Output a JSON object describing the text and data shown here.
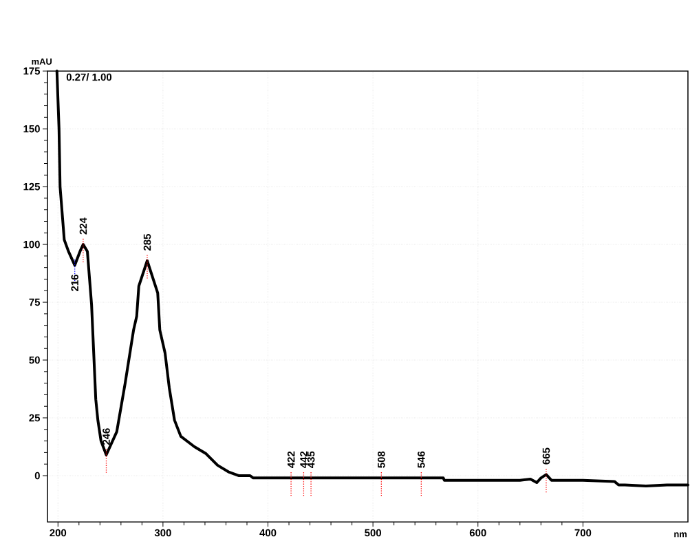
{
  "chart_data": {
    "type": "line",
    "xlabel": "nm",
    "ylabel": "mAU",
    "x": [
      199,
      201,
      202,
      206,
      210,
      216,
      221,
      224,
      228,
      232,
      236,
      238,
      241,
      246,
      256,
      264,
      272,
      275,
      277,
      285,
      295,
      297,
      302,
      306,
      311,
      317,
      330,
      341,
      352,
      363,
      372,
      383,
      386,
      450,
      500,
      540,
      567,
      568,
      600,
      640,
      650,
      656,
      660,
      665,
      670,
      680,
      700,
      730,
      734,
      740,
      760,
      780,
      800
    ],
    "series": [
      {
        "color": "#000000",
        "values": [
          175,
          150,
          125,
          102,
          97,
          91,
          97,
          100,
          97,
          74,
          33,
          24,
          15,
          9,
          19,
          40,
          63,
          69,
          82,
          93,
          79,
          63,
          53,
          38,
          24,
          17,
          12.5,
          9.5,
          4.5,
          1.5,
          0,
          0,
          -1,
          -1,
          -1,
          -1,
          -1,
          -2,
          -2,
          -2,
          -1.5,
          -3,
          -1,
          0.5,
          -2,
          -2,
          -2,
          -2.5,
          -4,
          -4,
          -4.5,
          -4,
          -4
        ]
      }
    ],
    "xlim": [
      190,
      800
    ],
    "ylim": [
      -20,
      175
    ],
    "xticks": [
      200,
      300,
      400,
      500,
      600,
      700
    ],
    "yticks": [
      0,
      25,
      50,
      75,
      100,
      125,
      150,
      175
    ],
    "grid": true,
    "line_style": "solid",
    "marker": "none",
    "annotations": [
      "0.27/ 1.00",
      {
        "text": "216",
        "x": 216,
        "y": 91
      },
      {
        "text": "224",
        "x": 224,
        "y": 100
      },
      {
        "text": "246",
        "x": 246,
        "y": 9
      },
      {
        "text": "285",
        "x": 285,
        "y": 93
      },
      {
        "text": "422",
        "x": 422,
        "y": -1
      },
      {
        "text": "442",
        "x": 434,
        "y": -1
      },
      {
        "text": "435",
        "x": 441,
        "y": -1
      },
      {
        "text": "508",
        "x": 508,
        "y": -1
      },
      {
        "text": "546",
        "x": 546,
        "y": -1
      },
      {
        "text": "665",
        "x": 665,
        "y": 0.5
      }
    ]
  }
}
